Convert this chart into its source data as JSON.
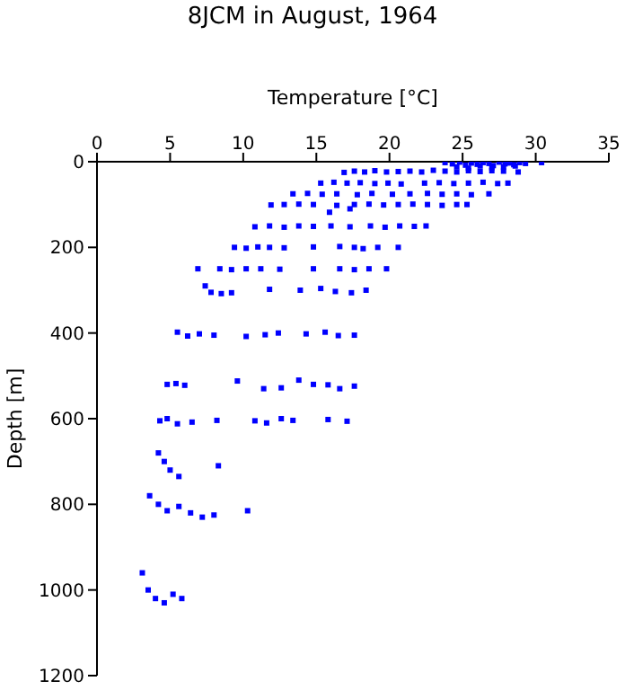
{
  "chart_data": {
    "type": "scatter",
    "title": "8JCM in August, 1964",
    "xlabel": "Temperature [°C]",
    "ylabel": "Depth [m]",
    "xlim": [
      0,
      35
    ],
    "xticks": [
      0,
      5,
      10,
      15,
      20,
      25,
      30,
      35
    ],
    "ylim": [
      1200,
      0
    ],
    "yticks": [
      0,
      200,
      400,
      600,
      800,
      1000,
      1200
    ],
    "marker": "square",
    "grid": false,
    "series": [
      {
        "color": "#0000ff",
        "x": [
          23.8,
          24.3,
          24.8,
          25.2,
          25.6,
          26,
          26.4,
          26.8,
          27.1,
          27.5,
          27.9,
          28.2,
          28.5,
          28.9,
          29.3,
          30.4,
          24.6,
          25.4,
          26.2,
          27,
          27.8,
          28.6,
          16.9,
          17.6,
          18.3,
          19,
          19.8,
          20.6,
          21.4,
          22.2,
          23,
          23.8,
          24.6,
          25.4,
          26.2,
          27,
          27.8,
          28.8,
          15.3,
          16.2,
          17.1,
          18,
          19,
          19.9,
          20.8,
          22.4,
          23.4,
          24.4,
          25.4,
          26.4,
          27.4,
          28.1,
          13.4,
          14.4,
          15.4,
          16.4,
          17.8,
          18.8,
          20.2,
          21.4,
          22.6,
          23.6,
          24.6,
          25.6,
          26.8,
          11.9,
          12.8,
          13.8,
          14.8,
          16.4,
          17.6,
          18.6,
          19.6,
          20.6,
          21.6,
          22.6,
          23.6,
          24.6,
          25.3,
          15.9,
          17.3,
          10.8,
          11.8,
          12.8,
          13.8,
          14.8,
          16,
          17.3,
          18.7,
          19.7,
          20.7,
          21.7,
          22.5,
          9.4,
          10.2,
          11,
          11.8,
          12.8,
          14.8,
          16.6,
          17.6,
          18.2,
          19.2,
          20.6,
          6.9,
          8.4,
          9.2,
          10.2,
          11.2,
          12.5,
          14.8,
          16.6,
          17.6,
          18.6,
          19.8,
          7.4,
          7.8,
          8.5,
          9.2,
          11.8,
          13.9,
          15.3,
          16.3,
          17.4,
          18.4,
          5.5,
          6.2,
          7,
          8,
          10.2,
          11.5,
          12.4,
          14.3,
          15.6,
          16.5,
          17.6,
          4.8,
          5.4,
          6,
          9.6,
          11.4,
          12.6,
          13.8,
          14.8,
          15.8,
          16.6,
          17.6,
          4.3,
          4.8,
          5.5,
          6.5,
          8.2,
          10.8,
          11.6,
          12.6,
          13.4,
          15.8,
          17.1,
          4.2,
          4.6,
          5,
          5.6,
          8.3,
          3.6,
          4.2,
          4.8,
          5.6,
          6.4,
          7.2,
          8,
          10.3,
          3.1,
          3.5,
          4,
          4.6,
          5.2,
          5.8
        ],
        "values": [
          2,
          5,
          1,
          8,
          3,
          6,
          2,
          4,
          9,
          1,
          5,
          3,
          7,
          2,
          4,
          2,
          12,
          15,
          10,
          14,
          12,
          10,
          25,
          22,
          24,
          21,
          24,
          23,
          22,
          24,
          20,
          22,
          24,
          21,
          23,
          21,
          22,
          24,
          50,
          48,
          50,
          49,
          51,
          50,
          52,
          50,
          49,
          51,
          50,
          48,
          51,
          50,
          75,
          74,
          76,
          75,
          77,
          74,
          76,
          75,
          74,
          76,
          75,
          77,
          75,
          101,
          100,
          99,
          100,
          102,
          100,
          99,
          101,
          100,
          99,
          100,
          102,
          100,
          100,
          118,
          110,
          152,
          150,
          153,
          150,
          151,
          150,
          152,
          150,
          153,
          150,
          151,
          150,
          200,
          202,
          199,
          200,
          201,
          199,
          198,
          200,
          203,
          200,
          200,
          250,
          250,
          252,
          250,
          250,
          251,
          250,
          250,
          252,
          250,
          250,
          290,
          305,
          308,
          306,
          298,
          300,
          296,
          303,
          306,
          300,
          398,
          407,
          402,
          405,
          408,
          404,
          400,
          402,
          398,
          406,
          405,
          520,
          518,
          522,
          512,
          530,
          528,
          510,
          520,
          521,
          530,
          524,
          605,
          600,
          612,
          608,
          604,
          605,
          610,
          600,
          604,
          602,
          606,
          680,
          700,
          720,
          735,
          710,
          780,
          800,
          815,
          805,
          820,
          830,
          825,
          815,
          960,
          1000,
          1020,
          1030,
          1010,
          1020
        ]
      }
    ]
  }
}
